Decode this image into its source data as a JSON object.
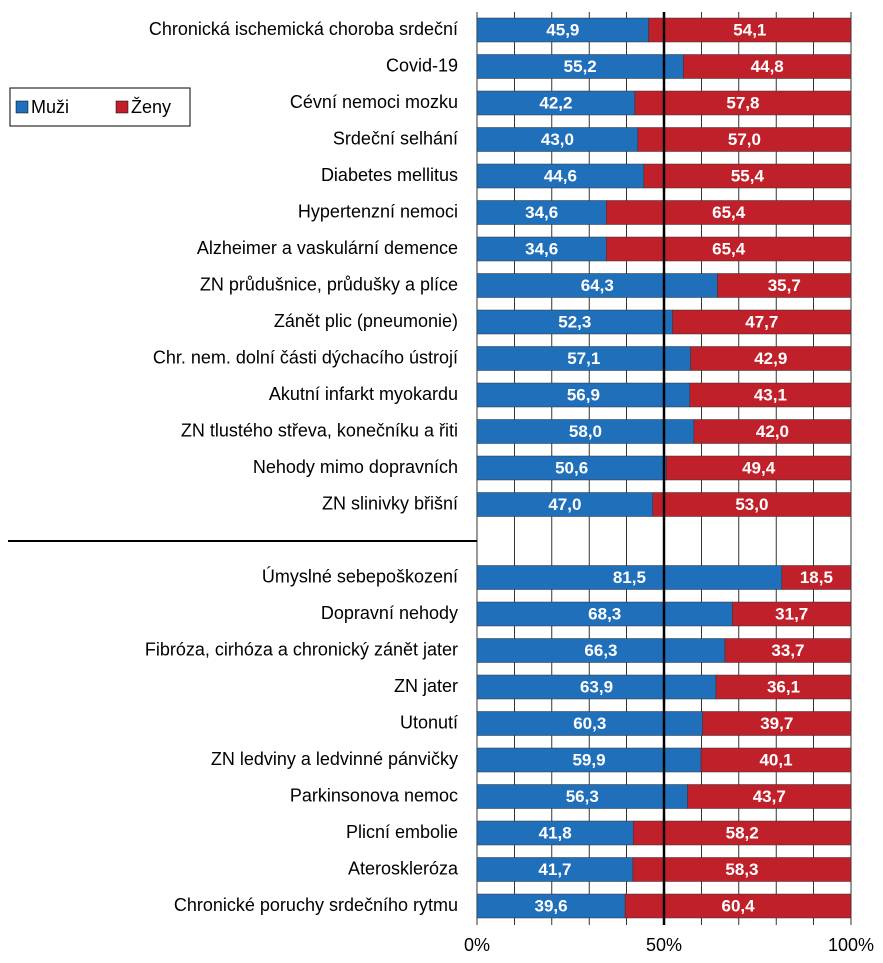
{
  "chart_data": {
    "type": "stacked_barh",
    "categories": [
      "Chronická ischemická choroba srdeční",
      "Covid-19",
      "Cévní nemoci mozku",
      "Srdeční selhání",
      "Diabetes mellitus",
      "Hypertenzní nemoci",
      "Alzheimer a vaskulární demence",
      "ZN průdušnice, průdušky a plíce",
      "Zánět plic (pneumonie)",
      "Chr. nem. dolní části dýchacího ústrojí",
      "Akutní infarkt myokardu",
      "ZN tlustého střeva, konečníku a řiti",
      "Nehody mimo dopravních",
      "ZN slinivky břišní",
      null,
      "Úmyslné sebepoškození",
      "Dopravní nehody",
      "Fibróza, cirhóza a chronický zánět jater",
      "ZN jater",
      "Utonutí",
      "ZN ledviny a ledvinné pánvičky",
      "Parkinsonova nemoc",
      "Plicní embolie",
      "Ateroskleróza",
      "Chronické poruchy srdečního rytmu"
    ],
    "series": [
      {
        "name": "Muži",
        "color": "#1f6fba",
        "values": [
          45.9,
          55.2,
          42.2,
          43.0,
          44.6,
          34.6,
          34.6,
          64.3,
          52.3,
          57.1,
          56.9,
          58.0,
          50.6,
          47.0,
          null,
          81.5,
          68.3,
          66.3,
          63.9,
          60.3,
          59.9,
          56.3,
          41.8,
          41.7,
          39.6
        ],
        "value_labels": [
          "45,9",
          "55,2",
          "42,2",
          "43,0",
          "44,6",
          "34,6",
          "34,6",
          "64,3",
          "52,3",
          "57,1",
          "56,9",
          "58,0",
          "50,6",
          "47,0",
          null,
          "81,5",
          "68,3",
          "66,3",
          "63,9",
          "60,3",
          "59,9",
          "56,3",
          "41,8",
          "41,7",
          "39,6"
        ]
      },
      {
        "name": "Ženy",
        "color": "#c0202a",
        "values": [
          54.1,
          44.8,
          57.8,
          57.0,
          55.4,
          65.4,
          65.4,
          35.7,
          47.7,
          42.9,
          43.1,
          42.0,
          49.4,
          53.0,
          null,
          18.5,
          31.7,
          33.7,
          36.1,
          39.7,
          40.1,
          43.7,
          58.2,
          58.3,
          60.4
        ],
        "value_labels": [
          "54,1",
          "44,8",
          "57,8",
          "57,0",
          "55,4",
          "65,4",
          "65,4",
          "35,7",
          "47,7",
          "42,9",
          "43,1",
          "42,0",
          "49,4",
          "53,0",
          null,
          "18,5",
          "31,7",
          "33,7",
          "36,1",
          "39,7",
          "40,1",
          "43,7",
          "58,2",
          "58,3",
          "60,4"
        ]
      }
    ],
    "xlim": [
      0,
      100
    ],
    "xticks": [
      {
        "value": 0,
        "label": "0%"
      },
      {
        "value": 50,
        "label": "50%"
      },
      {
        "value": 100,
        "label": "100%"
      }
    ],
    "xgrid": [
      0,
      10,
      20,
      30,
      40,
      50,
      60,
      70,
      80,
      90,
      100
    ],
    "reference_line": 50,
    "legend": "upper left"
  }
}
